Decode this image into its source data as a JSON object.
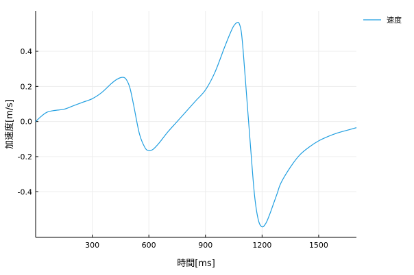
{
  "chart_data": {
    "type": "line",
    "xlabel": "時間[ms]",
    "ylabel": "加速度[m/s]",
    "xlim": [
      0,
      1700
    ],
    "ylim": [
      -0.66,
      0.63
    ],
    "xticks": [
      300,
      600,
      900,
      1200,
      1500
    ],
    "xtick_labels": [
      "300",
      "600",
      "900",
      "1200",
      "1500"
    ],
    "yticks": [
      -0.4,
      -0.2,
      0.0,
      0.2,
      0.4
    ],
    "ytick_labels": [
      "-0.4",
      "-0.2",
      "0.0",
      "0.2",
      "0.4"
    ],
    "grid": true,
    "legend_position": "top-right-outside",
    "series": [
      {
        "name": "速度",
        "color": "#1f9ee0",
        "x": [
          0,
          30,
          60,
          100,
          150,
          200,
          250,
          300,
          350,
          400,
          430,
          460,
          480,
          500,
          520,
          550,
          580,
          600,
          620,
          640,
          660,
          700,
          750,
          800,
          850,
          900,
          950,
          1000,
          1030,
          1050,
          1070,
          1080,
          1090,
          1100,
          1120,
          1140,
          1160,
          1180,
          1200,
          1220,
          1240,
          1260,
          1280,
          1300,
          1350,
          1400,
          1450,
          1500,
          1550,
          1600,
          1650,
          1700
        ],
        "values": [
          0.0,
          0.03,
          0.053,
          0.063,
          0.07,
          0.09,
          0.11,
          0.13,
          0.165,
          0.215,
          0.24,
          0.252,
          0.24,
          0.19,
          0.09,
          -0.07,
          -0.15,
          -0.165,
          -0.16,
          -0.14,
          -0.115,
          -0.06,
          0.0,
          0.06,
          0.12,
          0.18,
          0.28,
          0.42,
          0.5,
          0.545,
          0.565,
          0.555,
          0.51,
          0.4,
          0.12,
          -0.16,
          -0.42,
          -0.56,
          -0.6,
          -0.58,
          -0.53,
          -0.47,
          -0.41,
          -0.35,
          -0.26,
          -0.19,
          -0.145,
          -0.11,
          -0.085,
          -0.065,
          -0.05,
          -0.035
        ]
      }
    ]
  }
}
